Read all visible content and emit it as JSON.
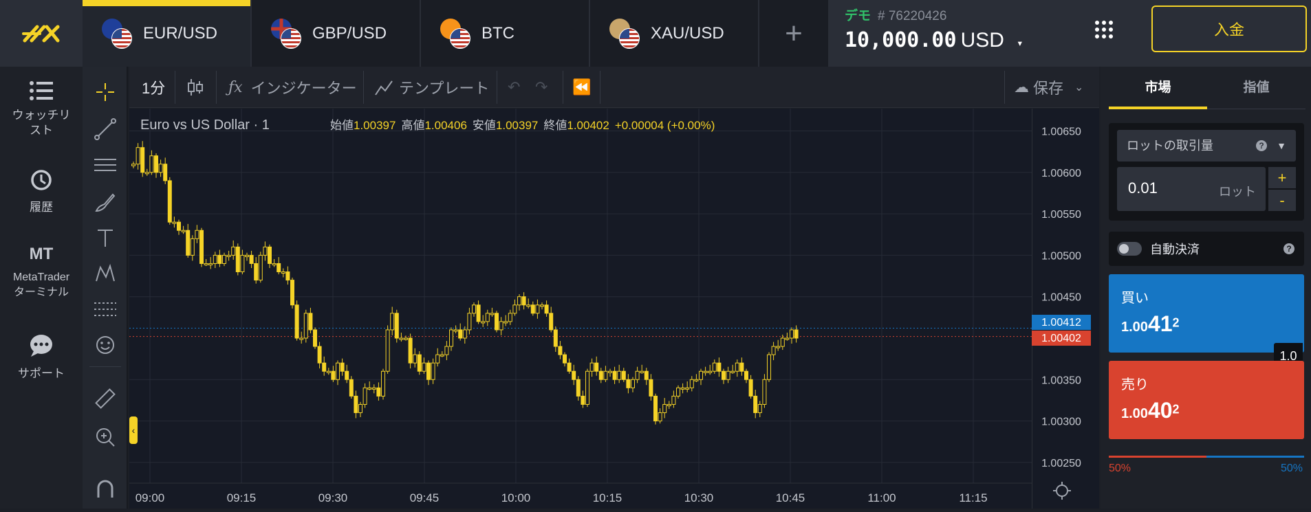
{
  "top": {
    "tabs": [
      {
        "label": "EUR/USD",
        "active": true
      },
      {
        "label": "GBP/USD",
        "active": false
      },
      {
        "label": "BTC",
        "active": false
      },
      {
        "label": "XAU/USD",
        "active": false
      }
    ],
    "add_tab": "+",
    "account": {
      "mode": "デモ",
      "number": "# 76220426",
      "balance": "10,000.00",
      "currency": "USD"
    },
    "deposit_label": "入金"
  },
  "sidebar": {
    "items": [
      {
        "label": "ウォッチリスト",
        "icon": "list-icon"
      },
      {
        "label": "履歴",
        "icon": "history-icon"
      },
      {
        "label": "MT",
        "sub": "MetaTraderターミナル",
        "icon": "mt-icon"
      },
      {
        "label": "サポート",
        "icon": "chat-icon"
      }
    ]
  },
  "toolbar": {
    "interval": "1分",
    "indicators": "インジケーター",
    "template": "テンプレート",
    "save": "保存"
  },
  "chart_data": {
    "type": "candlestick",
    "symbol_title": "Euro vs US Dollar · 1",
    "ohlc_labels": {
      "open": "始値",
      "high": "高値",
      "low": "安値",
      "close": "終値"
    },
    "ohlc_values": {
      "open": "1.00397",
      "high": "1.00406",
      "low": "1.00397",
      "close": "1.00402",
      "change": "+0.00004 (+0.00%)"
    },
    "y_ticks": [
      "1.00650",
      "1.00600",
      "1.00550",
      "1.00500",
      "1.00450",
      "1.00350",
      "1.00300",
      "1.00250"
    ],
    "y_range": [
      1.00225,
      1.00677
    ],
    "x_ticks": [
      "09:00",
      "09:15",
      "09:30",
      "09:45",
      "10:00",
      "10:15",
      "10:30",
      "10:45",
      "11:00",
      "11:15"
    ],
    "ask_price": "1.00412",
    "bid_price": "1.00402",
    "ask_color": "#1676c4",
    "bid_color": "#d9432f",
    "candle_color": "#f5d327",
    "closes": [
      1.0061,
      1.0063,
      1.006,
      1.006,
      1.0062,
      1.006,
      1.0061,
      1.0059,
      1.0054,
      1.0054,
      1.0053,
      1.0053,
      1.005,
      1.0052,
      1.0053,
      1.0049,
      1.0049,
      1.0049,
      1.005,
      1.0049,
      1.005,
      1.005,
      1.0051,
      1.0048,
      1.005,
      1.005,
      1.0049,
      1.0047,
      1.005,
      1.0051,
      1.0049,
      1.0049,
      1.0048,
      1.0048,
      1.0047,
      1.0044,
      1.004,
      1.004,
      1.0043,
      1.0041,
      1.0039,
      1.0037,
      1.0036,
      1.0036,
      1.0035,
      1.0037,
      1.0036,
      1.0035,
      1.0033,
      1.0031,
      1.0032,
      1.0034,
      1.0034,
      1.0034,
      1.0033,
      1.0036,
      1.0041,
      1.0043,
      1.004,
      1.004,
      1.004,
      1.0037,
      1.0038,
      1.0036,
      1.0037,
      1.0035,
      1.0037,
      1.0038,
      1.0038,
      1.0039,
      1.0041,
      1.0041,
      1.004,
      1.0041,
      1.0043,
      1.0044,
      1.0042,
      1.0042,
      1.0043,
      1.0043,
      1.0041,
      1.0042,
      1.0042,
      1.0043,
      1.0044,
      1.0045,
      1.0044,
      1.0044,
      1.0043,
      1.0044,
      1.0044,
      1.0043,
      1.0041,
      1.0039,
      1.0038,
      1.0037,
      1.0036,
      1.0035,
      1.0033,
      1.0032,
      1.0036,
      1.0037,
      1.0036,
      1.0035,
      1.0036,
      1.0036,
      1.0035,
      1.0036,
      1.0035,
      1.0034,
      1.0035,
      1.0036,
      1.0036,
      1.0035,
      1.0033,
      1.003,
      1.0031,
      1.0032,
      1.0032,
      1.0033,
      1.0034,
      1.0034,
      1.0034,
      1.0035,
      1.0035,
      1.0036,
      1.0036,
      1.0036,
      1.0037,
      1.0036,
      1.0035,
      1.0036,
      1.0036,
      1.0037,
      1.0036,
      1.0035,
      1.0033,
      1.0031,
      1.0032,
      1.0035,
      1.0038,
      1.0039,
      1.0039,
      1.004,
      1.004,
      1.0041,
      1.004
    ]
  },
  "right": {
    "tab_market": "市場",
    "tab_limit": "指値",
    "lot_label": "ロットの取引量",
    "lot_value": "0.01",
    "lot_unit": "ロット",
    "plus": "+",
    "minus": "-",
    "auto_close": "自動決済",
    "buy_label": "買い",
    "buy_price_small": "1.00",
    "buy_price_big": "41",
    "buy_price_sup": "2",
    "sell_label": "売り",
    "sell_price_small": "1.00",
    "sell_price_big": "40",
    "sell_price_sup": "2",
    "spread": "1.0",
    "sentiment_sell": "50%",
    "sentiment_buy": "50%"
  }
}
